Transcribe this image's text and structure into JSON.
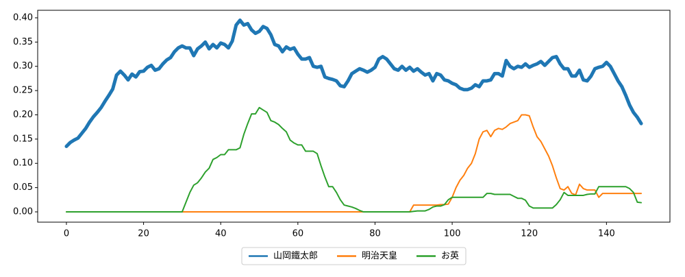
{
  "chart_data": {
    "type": "line",
    "x": [
      0,
      1,
      2,
      3,
      4,
      5,
      6,
      7,
      8,
      9,
      10,
      11,
      12,
      13,
      14,
      15,
      16,
      17,
      18,
      19,
      20,
      21,
      22,
      23,
      24,
      25,
      26,
      27,
      28,
      29,
      30,
      31,
      32,
      33,
      34,
      35,
      36,
      37,
      38,
      39,
      40,
      41,
      42,
      43,
      44,
      45,
      46,
      47,
      48,
      49,
      50,
      51,
      52,
      53,
      54,
      55,
      56,
      57,
      58,
      59,
      60,
      61,
      62,
      63,
      64,
      65,
      66,
      67,
      68,
      69,
      70,
      71,
      72,
      73,
      74,
      75,
      76,
      77,
      78,
      79,
      80,
      81,
      82,
      83,
      84,
      85,
      86,
      87,
      88,
      89,
      90,
      91,
      92,
      93,
      94,
      95,
      96,
      97,
      98,
      99,
      100,
      101,
      102,
      103,
      104,
      105,
      106,
      107,
      108,
      109,
      110,
      111,
      112,
      113,
      114,
      115,
      116,
      117,
      118,
      119,
      120,
      121,
      122,
      123,
      124,
      125,
      126,
      127,
      128,
      129,
      130,
      131,
      132,
      133,
      134,
      135,
      136,
      137,
      138,
      139,
      140,
      141,
      142,
      143,
      144,
      145,
      146,
      147,
      148,
      149
    ],
    "series": [
      {
        "name": "山岡鐵太郎",
        "color": "#1f77b4",
        "values": [
          0.135,
          0.143,
          0.148,
          0.152,
          0.162,
          0.172,
          0.185,
          0.196,
          0.205,
          0.215,
          0.228,
          0.24,
          0.253,
          0.282,
          0.29,
          0.282,
          0.272,
          0.284,
          0.278,
          0.289,
          0.29,
          0.298,
          0.302,
          0.292,
          0.295,
          0.305,
          0.313,
          0.318,
          0.33,
          0.338,
          0.342,
          0.338,
          0.338,
          0.322,
          0.336,
          0.342,
          0.35,
          0.336,
          0.345,
          0.338,
          0.348,
          0.345,
          0.338,
          0.352,
          0.385,
          0.395,
          0.385,
          0.388,
          0.375,
          0.368,
          0.372,
          0.382,
          0.378,
          0.365,
          0.345,
          0.342,
          0.33,
          0.34,
          0.335,
          0.338,
          0.325,
          0.315,
          0.315,
          0.318,
          0.3,
          0.298,
          0.3,
          0.278,
          0.275,
          0.273,
          0.27,
          0.26,
          0.258,
          0.27,
          0.285,
          0.29,
          0.295,
          0.292,
          0.288,
          0.292,
          0.298,
          0.315,
          0.32,
          0.315,
          0.305,
          0.295,
          0.292,
          0.3,
          0.292,
          0.298,
          0.29,
          0.295,
          0.288,
          0.282,
          0.285,
          0.27,
          0.285,
          0.282,
          0.272,
          0.27,
          0.265,
          0.262,
          0.255,
          0.252,
          0.252,
          0.255,
          0.262,
          0.258,
          0.27,
          0.27,
          0.272,
          0.285,
          0.285,
          0.28,
          0.312,
          0.3,
          0.295,
          0.3,
          0.298,
          0.305,
          0.298,
          0.302,
          0.305,
          0.31,
          0.302,
          0.31,
          0.318,
          0.32,
          0.305,
          0.295,
          0.295,
          0.28,
          0.28,
          0.292,
          0.272,
          0.27,
          0.28,
          0.295,
          0.298,
          0.3,
          0.308,
          0.3,
          0.285,
          0.27,
          0.258,
          0.24,
          0.22,
          0.205,
          0.195,
          0.182
        ]
      },
      {
        "name": "明治天皇",
        "color": "#ff7f0e",
        "values": [
          0,
          0,
          0,
          0,
          0,
          0,
          0,
          0,
          0,
          0,
          0,
          0,
          0,
          0,
          0,
          0,
          0,
          0,
          0,
          0,
          0,
          0,
          0,
          0,
          0,
          0,
          0,
          0,
          0,
          0,
          0,
          0,
          0,
          0,
          0,
          0,
          0,
          0,
          0,
          0,
          0,
          0,
          0,
          0,
          0,
          0,
          0,
          0,
          0,
          0,
          0,
          0,
          0,
          0,
          0,
          0,
          0,
          0,
          0,
          0,
          0,
          0,
          0,
          0,
          0,
          0,
          0,
          0,
          0,
          0,
          0,
          0,
          0,
          0,
          0,
          0,
          0,
          0,
          0,
          0,
          0,
          0,
          0,
          0,
          0,
          0,
          0,
          0,
          0,
          0,
          0.014,
          0.014,
          0.014,
          0.014,
          0.014,
          0.014,
          0.014,
          0.015,
          0.015,
          0.016,
          0.03,
          0.05,
          0.065,
          0.075,
          0.09,
          0.1,
          0.12,
          0.15,
          0.165,
          0.168,
          0.155,
          0.168,
          0.172,
          0.17,
          0.175,
          0.182,
          0.185,
          0.188,
          0.2,
          0.2,
          0.198,
          0.175,
          0.155,
          0.145,
          0.13,
          0.115,
          0.095,
          0.07,
          0.048,
          0.045,
          0.052,
          0.038,
          0.035,
          0.057,
          0.048,
          0.045,
          0.045,
          0.045,
          0.03,
          0.038,
          0.038,
          0.038,
          0.038,
          0.038,
          0.038,
          0.038,
          0.038,
          0.038,
          0.038,
          0.038
        ]
      },
      {
        "name": "お英",
        "color": "#2ca02c",
        "values": [
          0,
          0,
          0,
          0,
          0,
          0,
          0,
          0,
          0,
          0,
          0,
          0,
          0,
          0,
          0,
          0,
          0,
          0,
          0,
          0,
          0,
          0,
          0,
          0,
          0,
          0,
          0,
          0,
          0,
          0,
          0,
          0.02,
          0.04,
          0.055,
          0.06,
          0.07,
          0.082,
          0.09,
          0.108,
          0.112,
          0.118,
          0.118,
          0.128,
          0.128,
          0.128,
          0.132,
          0.16,
          0.182,
          0.202,
          0.202,
          0.215,
          0.21,
          0.205,
          0.188,
          0.185,
          0.18,
          0.172,
          0.165,
          0.148,
          0.142,
          0.138,
          0.138,
          0.125,
          0.125,
          0.125,
          0.12,
          0.095,
          0.072,
          0.052,
          0.052,
          0.04,
          0.025,
          0.014,
          0.012,
          0.01,
          0.007,
          0.003,
          0,
          0,
          0,
          0,
          0,
          0,
          0,
          0,
          0,
          0,
          0,
          0,
          0,
          0.001,
          0.002,
          0.002,
          0.002,
          0.005,
          0.01,
          0.012,
          0.012,
          0.015,
          0.025,
          0.03,
          0.03,
          0.03,
          0.03,
          0.03,
          0.03,
          0.03,
          0.03,
          0.03,
          0.038,
          0.038,
          0.036,
          0.036,
          0.036,
          0.036,
          0.036,
          0.032,
          0.028,
          0.028,
          0.024,
          0.012,
          0.008,
          0.008,
          0.008,
          0.008,
          0.008,
          0.008,
          0.015,
          0.025,
          0.04,
          0.034,
          0.034,
          0.034,
          0.034,
          0.034,
          0.036,
          0.037,
          0.037,
          0.052,
          0.052,
          0.052,
          0.052,
          0.052,
          0.052,
          0.052,
          0.052,
          0.048,
          0.04,
          0.02,
          0.019
        ]
      }
    ],
    "xlim": [
      -7.45,
      156.45
    ],
    "xticks": [
      0,
      20,
      40,
      60,
      80,
      100,
      120,
      140
    ],
    "ylim": [
      -0.0212,
      0.4155
    ],
    "yticks": [
      {
        "value": 0,
        "label": "0.00"
      },
      {
        "value": 0.05,
        "label": "0.05"
      },
      {
        "value": 0.1,
        "label": "0.10"
      },
      {
        "value": 0.15,
        "label": "0.15"
      },
      {
        "value": 0.2,
        "label": "0.20"
      },
      {
        "value": 0.25,
        "label": "0.25"
      },
      {
        "value": 0.3,
        "label": "0.30"
      },
      {
        "value": 0.35,
        "label": "0.35"
      },
      {
        "value": 0.4,
        "label": "0.40"
      }
    ],
    "legend": "lower-center"
  }
}
